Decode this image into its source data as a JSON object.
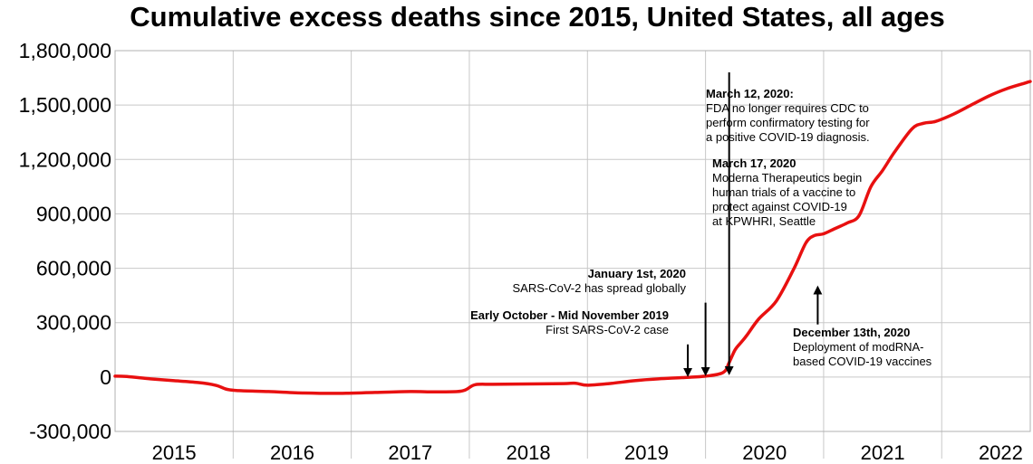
{
  "chart_data": {
    "type": "line",
    "title": "Cumulative excess deaths since 2015, United States, all ages",
    "xlabel": "",
    "ylabel": "",
    "xlim": [
      2015,
      2022.75
    ],
    "ylim": [
      -300000,
      1800000
    ],
    "grid": true,
    "line_color": "#e81010",
    "y_ticks": [
      {
        "value": 1800000,
        "label": "1,800,000"
      },
      {
        "value": 1500000,
        "label": "1,500,000"
      },
      {
        "value": 1200000,
        "label": "1,200,000"
      },
      {
        "value": 900000,
        "label": "900,000"
      },
      {
        "value": 600000,
        "label": "600,000"
      },
      {
        "value": 300000,
        "label": "300,000"
      },
      {
        "value": 0,
        "label": "0"
      },
      {
        "value": -300000,
        "label": "-300,000"
      }
    ],
    "x_ticks": [
      {
        "value": 2015.5,
        "label": "2015"
      },
      {
        "value": 2016.5,
        "label": "2016"
      },
      {
        "value": 2017.5,
        "label": "2017"
      },
      {
        "value": 2018.5,
        "label": "2018"
      },
      {
        "value": 2019.5,
        "label": "2019"
      },
      {
        "value": 2020.5,
        "label": "2020"
      },
      {
        "value": 2021.5,
        "label": "2021"
      },
      {
        "value": 2022.5,
        "label": "2022"
      }
    ],
    "x_gridlines": [
      2016,
      2017,
      2018,
      2019,
      2020,
      2021,
      2022
    ],
    "series": [
      {
        "x": [
          2015.0,
          2015.1,
          2015.3,
          2015.5,
          2015.7,
          2015.85,
          2015.95,
          2016.05,
          2016.3,
          2016.6,
          2016.9,
          2017.2,
          2017.5,
          2017.7,
          2017.9,
          2017.97,
          2018.05,
          2018.2,
          2018.5,
          2018.8,
          2018.9,
          2019.0,
          2019.2,
          2019.4,
          2019.6,
          2019.8,
          2020.0,
          2020.15,
          2020.2,
          2020.25,
          2020.3,
          2020.35,
          2020.45,
          2020.6,
          2020.75,
          2020.85,
          2020.92,
          2021.0,
          2021.1,
          2021.2,
          2021.3,
          2021.4,
          2021.5,
          2021.6,
          2021.75,
          2021.85,
          2021.95,
          2022.1,
          2022.25,
          2022.4,
          2022.55,
          2022.7,
          2022.75
        ],
        "y": [
          5000,
          3000,
          -10000,
          -20000,
          -30000,
          -45000,
          -68000,
          -75000,
          -80000,
          -88000,
          -90000,
          -85000,
          -80000,
          -82000,
          -80000,
          -70000,
          -42000,
          -40000,
          -38000,
          -36000,
          -34000,
          -45000,
          -35000,
          -20000,
          -10000,
          -3000,
          5000,
          25000,
          80000,
          150000,
          190000,
          230000,
          320000,
          420000,
          600000,
          740000,
          780000,
          790000,
          820000,
          850000,
          890000,
          1050000,
          1140000,
          1240000,
          1370000,
          1400000,
          1410000,
          1450000,
          1500000,
          1550000,
          1590000,
          1620000,
          1630000
        ]
      }
    ],
    "annotations": [
      {
        "title": "March 12, 2020:",
        "lines": [
          "FDA no longer requires CDC to",
          "perform confirmatory testing for",
          "a positive COVID-19 diagnosis."
        ],
        "arrow_x": 2020.2,
        "arrow_from_y": 1680000,
        "arrow_to_y": 25000
      },
      {
        "title": "March 17, 2020",
        "lines": [
          "Moderna Therapeutics begin",
          "human trials of a vaccine to",
          "protect against COVID-19",
          "at KPWHRI, Seattle"
        ]
      },
      {
        "title": "January 1st, 2020",
        "lines": [
          "SARS-CoV-2 has spread globally"
        ],
        "arrow_x": 2020.0,
        "arrow_from_y": 410000,
        "arrow_to_y": 20000
      },
      {
        "title": "Early October -  Mid November 2019",
        "lines": [
          "First SARS-CoV-2 case"
        ],
        "arrow_x": 2019.85,
        "arrow_from_y": 180000,
        "arrow_to_y": 15000
      },
      {
        "title": "December 13th, 2020",
        "lines": [
          "Deployment of modRNA-",
          "based COVID-19 vaccines"
        ],
        "arrow_x": 2020.95,
        "arrow_from_y": 290000,
        "arrow_to_y": 490000
      }
    ]
  }
}
